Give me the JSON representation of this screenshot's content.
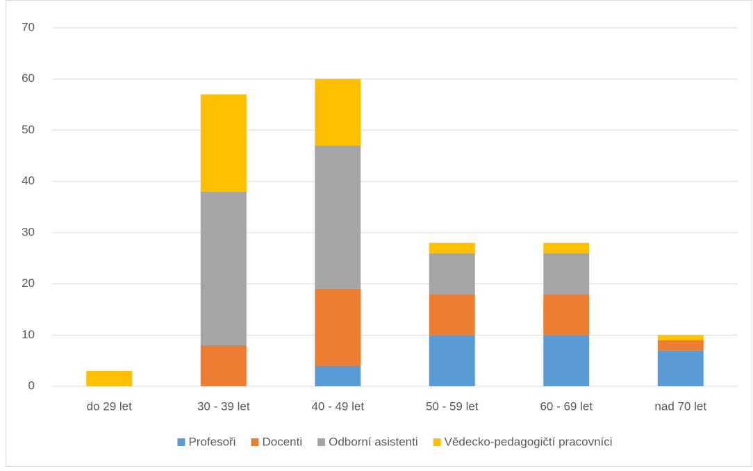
{
  "chart_data": {
    "type": "stacked_bar",
    "categories": [
      "do 29 let",
      "30 - 39 let",
      "40 - 49 let",
      "50 - 59 let",
      "60 - 69 let",
      "nad 70 let"
    ],
    "series": [
      {
        "name": "Profesoři",
        "color": "#5b9bd5",
        "values": [
          0,
          0,
          4,
          10,
          10,
          7
        ]
      },
      {
        "name": "Docenti",
        "color": "#ed7d31",
        "values": [
          0,
          8,
          15,
          8,
          8,
          2
        ]
      },
      {
        "name": "Odborní asistenti",
        "color": "#a5a5a5",
        "values": [
          0,
          30,
          28,
          8,
          8,
          0
        ]
      },
      {
        "name": "Vědecko-pedagogičtí pracovníci",
        "color": "#ffc000",
        "values": [
          3,
          19,
          13,
          2,
          2,
          1
        ]
      }
    ],
    "ylim": [
      0,
      70
    ],
    "yticks": [
      0,
      10,
      20,
      30,
      40,
      50,
      60,
      70
    ],
    "grid": true,
    "legend": "bottom"
  }
}
